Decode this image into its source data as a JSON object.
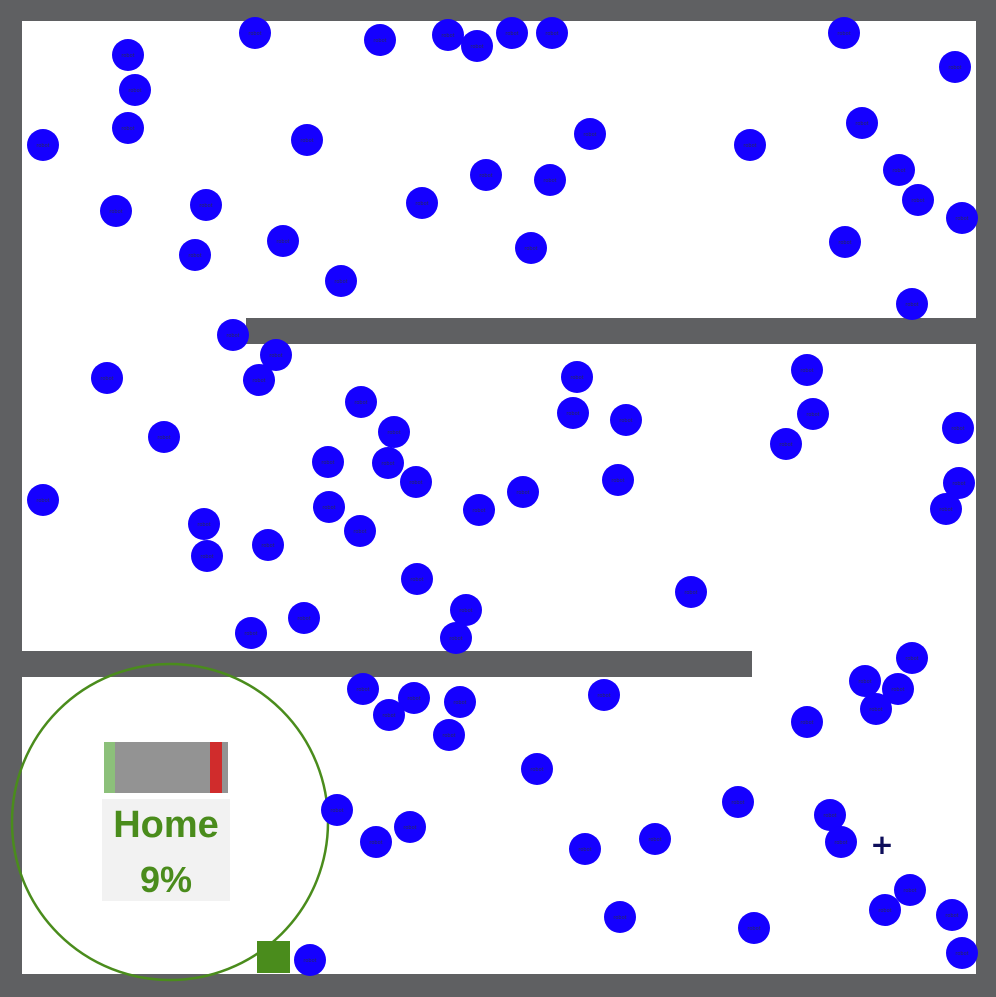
{
  "home": {
    "title": "Home",
    "percent": "9%",
    "progress_fraction": 0.09
  },
  "ball_label": "robot",
  "cursor": {
    "glyph": "+"
  },
  "colors": {
    "wall": "#5f6062",
    "floor": "#ffffff",
    "ball": "#1500ff",
    "home_ring": "#4a8c1c",
    "home_text": "#4a8c1c",
    "bar_green": "#8cc07a",
    "bar_red": "#d02c2c",
    "bar_gray": "#939393",
    "player": "#4a8c1c",
    "cursor": "#0d0d5a"
  }
}
